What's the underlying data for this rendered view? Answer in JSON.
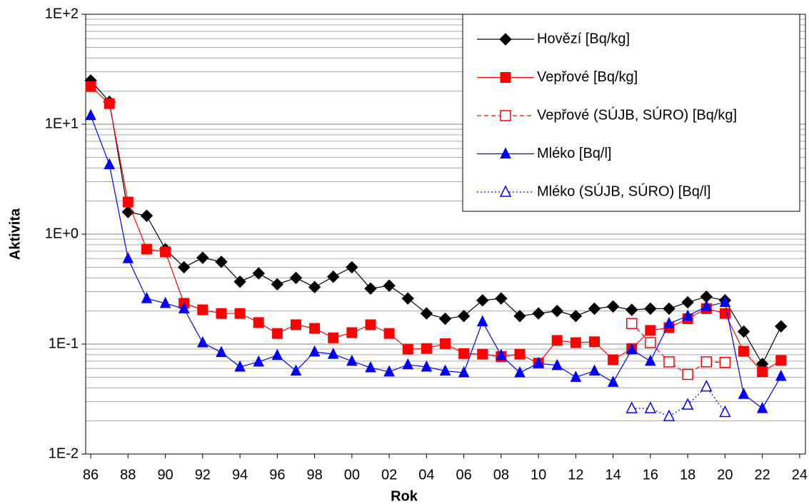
{
  "chart_data": {
    "type": "line",
    "xlabel": "Rok",
    "ylabel": "Aktivita",
    "x": [
      1986,
      1987,
      1988,
      1989,
      1990,
      1991,
      1992,
      1993,
      1994,
      1995,
      1996,
      1997,
      1998,
      1999,
      2000,
      2001,
      2002,
      2003,
      2004,
      2005,
      2006,
      2007,
      2008,
      2009,
      2010,
      2011,
      2012,
      2013,
      2014,
      2015,
      2016,
      2017,
      2018,
      2019,
      2020,
      2021,
      2022,
      2023
    ],
    "series": [
      {
        "name": "Hovězí [Bq/kg]",
        "color": "#000000",
        "marker": "diamond",
        "dash": "solid",
        "values": [
          25,
          16,
          1.59,
          1.47,
          0.73,
          0.5,
          0.61,
          0.56,
          0.37,
          0.44,
          0.35,
          0.4,
          0.33,
          0.41,
          0.5,
          0.32,
          0.34,
          0.26,
          0.19,
          0.17,
          0.18,
          0.25,
          0.26,
          0.18,
          0.19,
          0.2,
          0.18,
          0.21,
          0.22,
          0.205,
          0.21,
          0.21,
          0.24,
          0.27,
          0.25,
          0.13,
          0.066,
          0.145
        ]
      },
      {
        "name": "Vepřové [Bq/kg]",
        "color": "#ff0000",
        "marker": "square",
        "dash": "solid",
        "values": [
          22,
          15.4,
          1.96,
          0.73,
          0.69,
          0.235,
          0.205,
          0.19,
          0.19,
          0.157,
          0.125,
          0.15,
          0.139,
          0.114,
          0.127,
          0.15,
          0.125,
          0.09,
          0.091,
          0.101,
          0.082,
          0.081,
          0.077,
          0.081,
          0.067,
          0.108,
          0.103,
          0.105,
          0.072,
          0.091,
          0.133,
          0.141,
          0.17,
          0.21,
          0.19,
          0.086,
          0.056,
          0.071
        ]
      },
      {
        "name": "Vepřové (SÚJB, SÚRO) [Bq/kg]",
        "color": "#ff0000",
        "marker": "square-open",
        "dash": "dashed",
        "values": [
          null,
          null,
          null,
          null,
          null,
          null,
          null,
          null,
          null,
          null,
          null,
          null,
          null,
          null,
          null,
          null,
          null,
          null,
          null,
          null,
          null,
          null,
          null,
          null,
          null,
          null,
          null,
          null,
          null,
          0.154,
          0.103,
          0.069,
          0.053,
          0.069,
          0.068,
          null,
          null,
          null
        ]
      },
      {
        "name": "Mléko [Bq/l]",
        "color": "#0000ff",
        "marker": "triangle",
        "dash": "solid",
        "values": [
          12,
          4.3,
          0.6,
          0.26,
          0.235,
          0.21,
          0.103,
          0.084,
          0.062,
          0.069,
          0.079,
          0.057,
          0.085,
          0.081,
          0.07,
          0.061,
          0.056,
          0.065,
          0.062,
          0.057,
          0.055,
          0.16,
          0.079,
          0.055,
          0.067,
          0.064,
          0.05,
          0.057,
          0.045,
          0.089,
          0.07,
          0.154,
          0.18,
          0.22,
          0.24,
          0.035,
          0.026,
          0.051
        ]
      },
      {
        "name": "Mléko (SÚJB, SÚRO) [Bq/l]",
        "color": "#0000ff",
        "marker": "triangle-open",
        "dash": "dotted",
        "values": [
          null,
          null,
          null,
          null,
          null,
          null,
          null,
          null,
          null,
          null,
          null,
          null,
          null,
          null,
          null,
          null,
          null,
          null,
          null,
          null,
          null,
          null,
          null,
          null,
          null,
          null,
          null,
          null,
          null,
          0.026,
          0.026,
          0.022,
          0.028,
          0.041,
          0.024,
          null,
          null,
          null
        ]
      }
    ],
    "log_y": true,
    "grid": true,
    "minor_grid": true,
    "legend": "upper right",
    "xlim": [
      1985.73,
      2024.31
    ],
    "xticks": [
      {
        "value": 1986,
        "label": "86"
      },
      {
        "value": 1988,
        "label": "88"
      },
      {
        "value": 1990,
        "label": "90"
      },
      {
        "value": 1992,
        "label": "92"
      },
      {
        "value": 1994,
        "label": "94"
      },
      {
        "value": 1996,
        "label": "96"
      },
      {
        "value": 1998,
        "label": "98"
      },
      {
        "value": 2000,
        "label": "00"
      },
      {
        "value": 2002,
        "label": "02"
      },
      {
        "value": 2004,
        "label": "04"
      },
      {
        "value": 2006,
        "label": "06"
      },
      {
        "value": 2008,
        "label": "08"
      },
      {
        "value": 2010,
        "label": "10"
      },
      {
        "value": 2012,
        "label": "12"
      },
      {
        "value": 2014,
        "label": "14"
      },
      {
        "value": 2016,
        "label": "16"
      },
      {
        "value": 2018,
        "label": "18"
      },
      {
        "value": 2020,
        "label": "20"
      },
      {
        "value": 2022,
        "label": "22"
      },
      {
        "value": 2024,
        "label": "24"
      }
    ],
    "ylim": [
      0.01,
      100
    ],
    "yticks": [
      {
        "value": 0.01,
        "label": "1E-2"
      },
      {
        "value": 0.1,
        "label": "1E-1"
      },
      {
        "value": 1,
        "label": "1E+0"
      },
      {
        "value": 10,
        "label": "1E+1"
      },
      {
        "value": 100,
        "label": "1E+2"
      }
    ]
  }
}
